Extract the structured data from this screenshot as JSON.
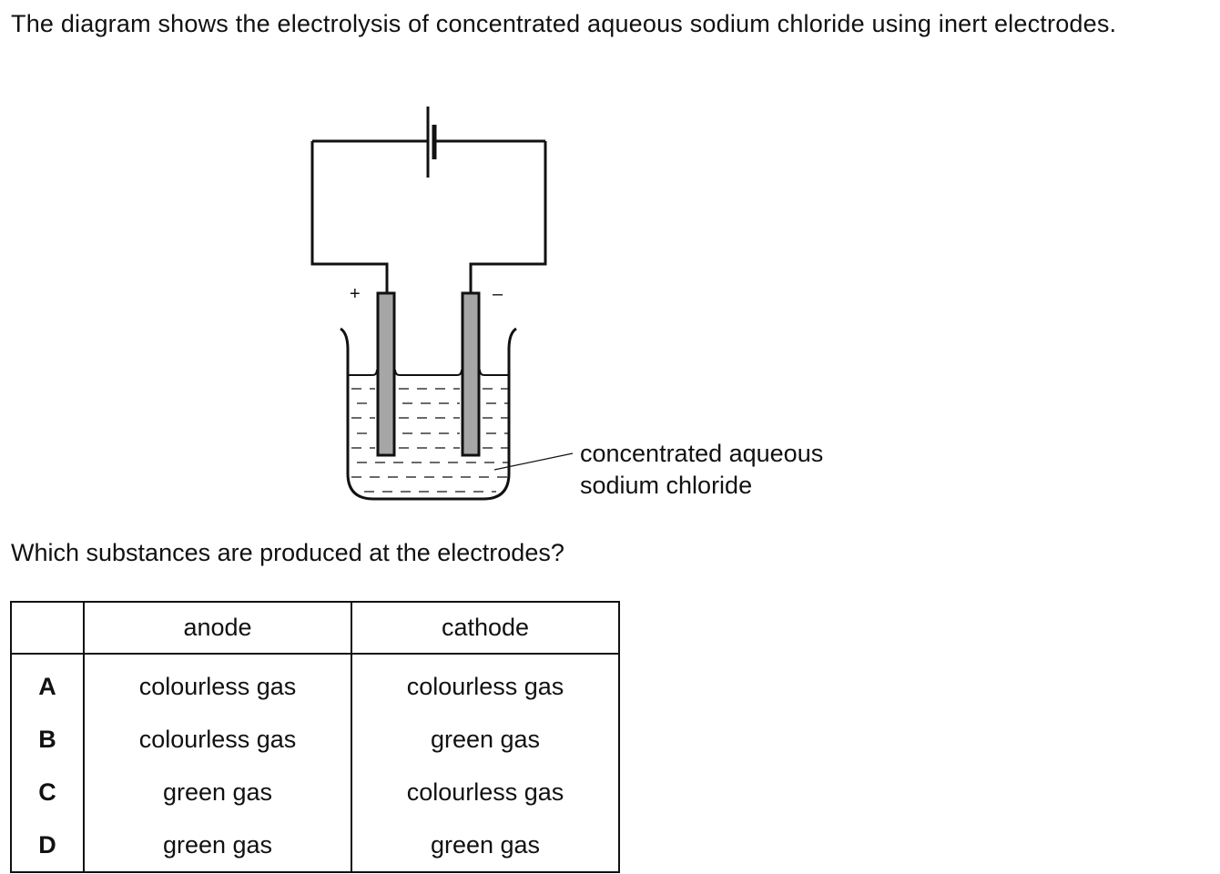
{
  "intro_text": "The diagram shows the electrolysis of concentrated aqueous sodium chloride using inert electrodes.",
  "diagram": {
    "anode_sign": "+",
    "cathode_sign": "–",
    "solution_label_line1": "concentrated aqueous",
    "solution_label_line2": "sodium chloride"
  },
  "question_text": "Which substances are produced at the electrodes?",
  "table": {
    "headers": [
      "",
      "anode",
      "cathode"
    ],
    "rows": [
      {
        "key": "A",
        "anode": "colourless gas",
        "cathode": "colourless gas"
      },
      {
        "key": "B",
        "anode": "colourless gas",
        "cathode": "green gas"
      },
      {
        "key": "C",
        "anode": "green gas",
        "cathode": "colourless gas"
      },
      {
        "key": "D",
        "anode": "green gas",
        "cathode": "green gas"
      }
    ]
  }
}
